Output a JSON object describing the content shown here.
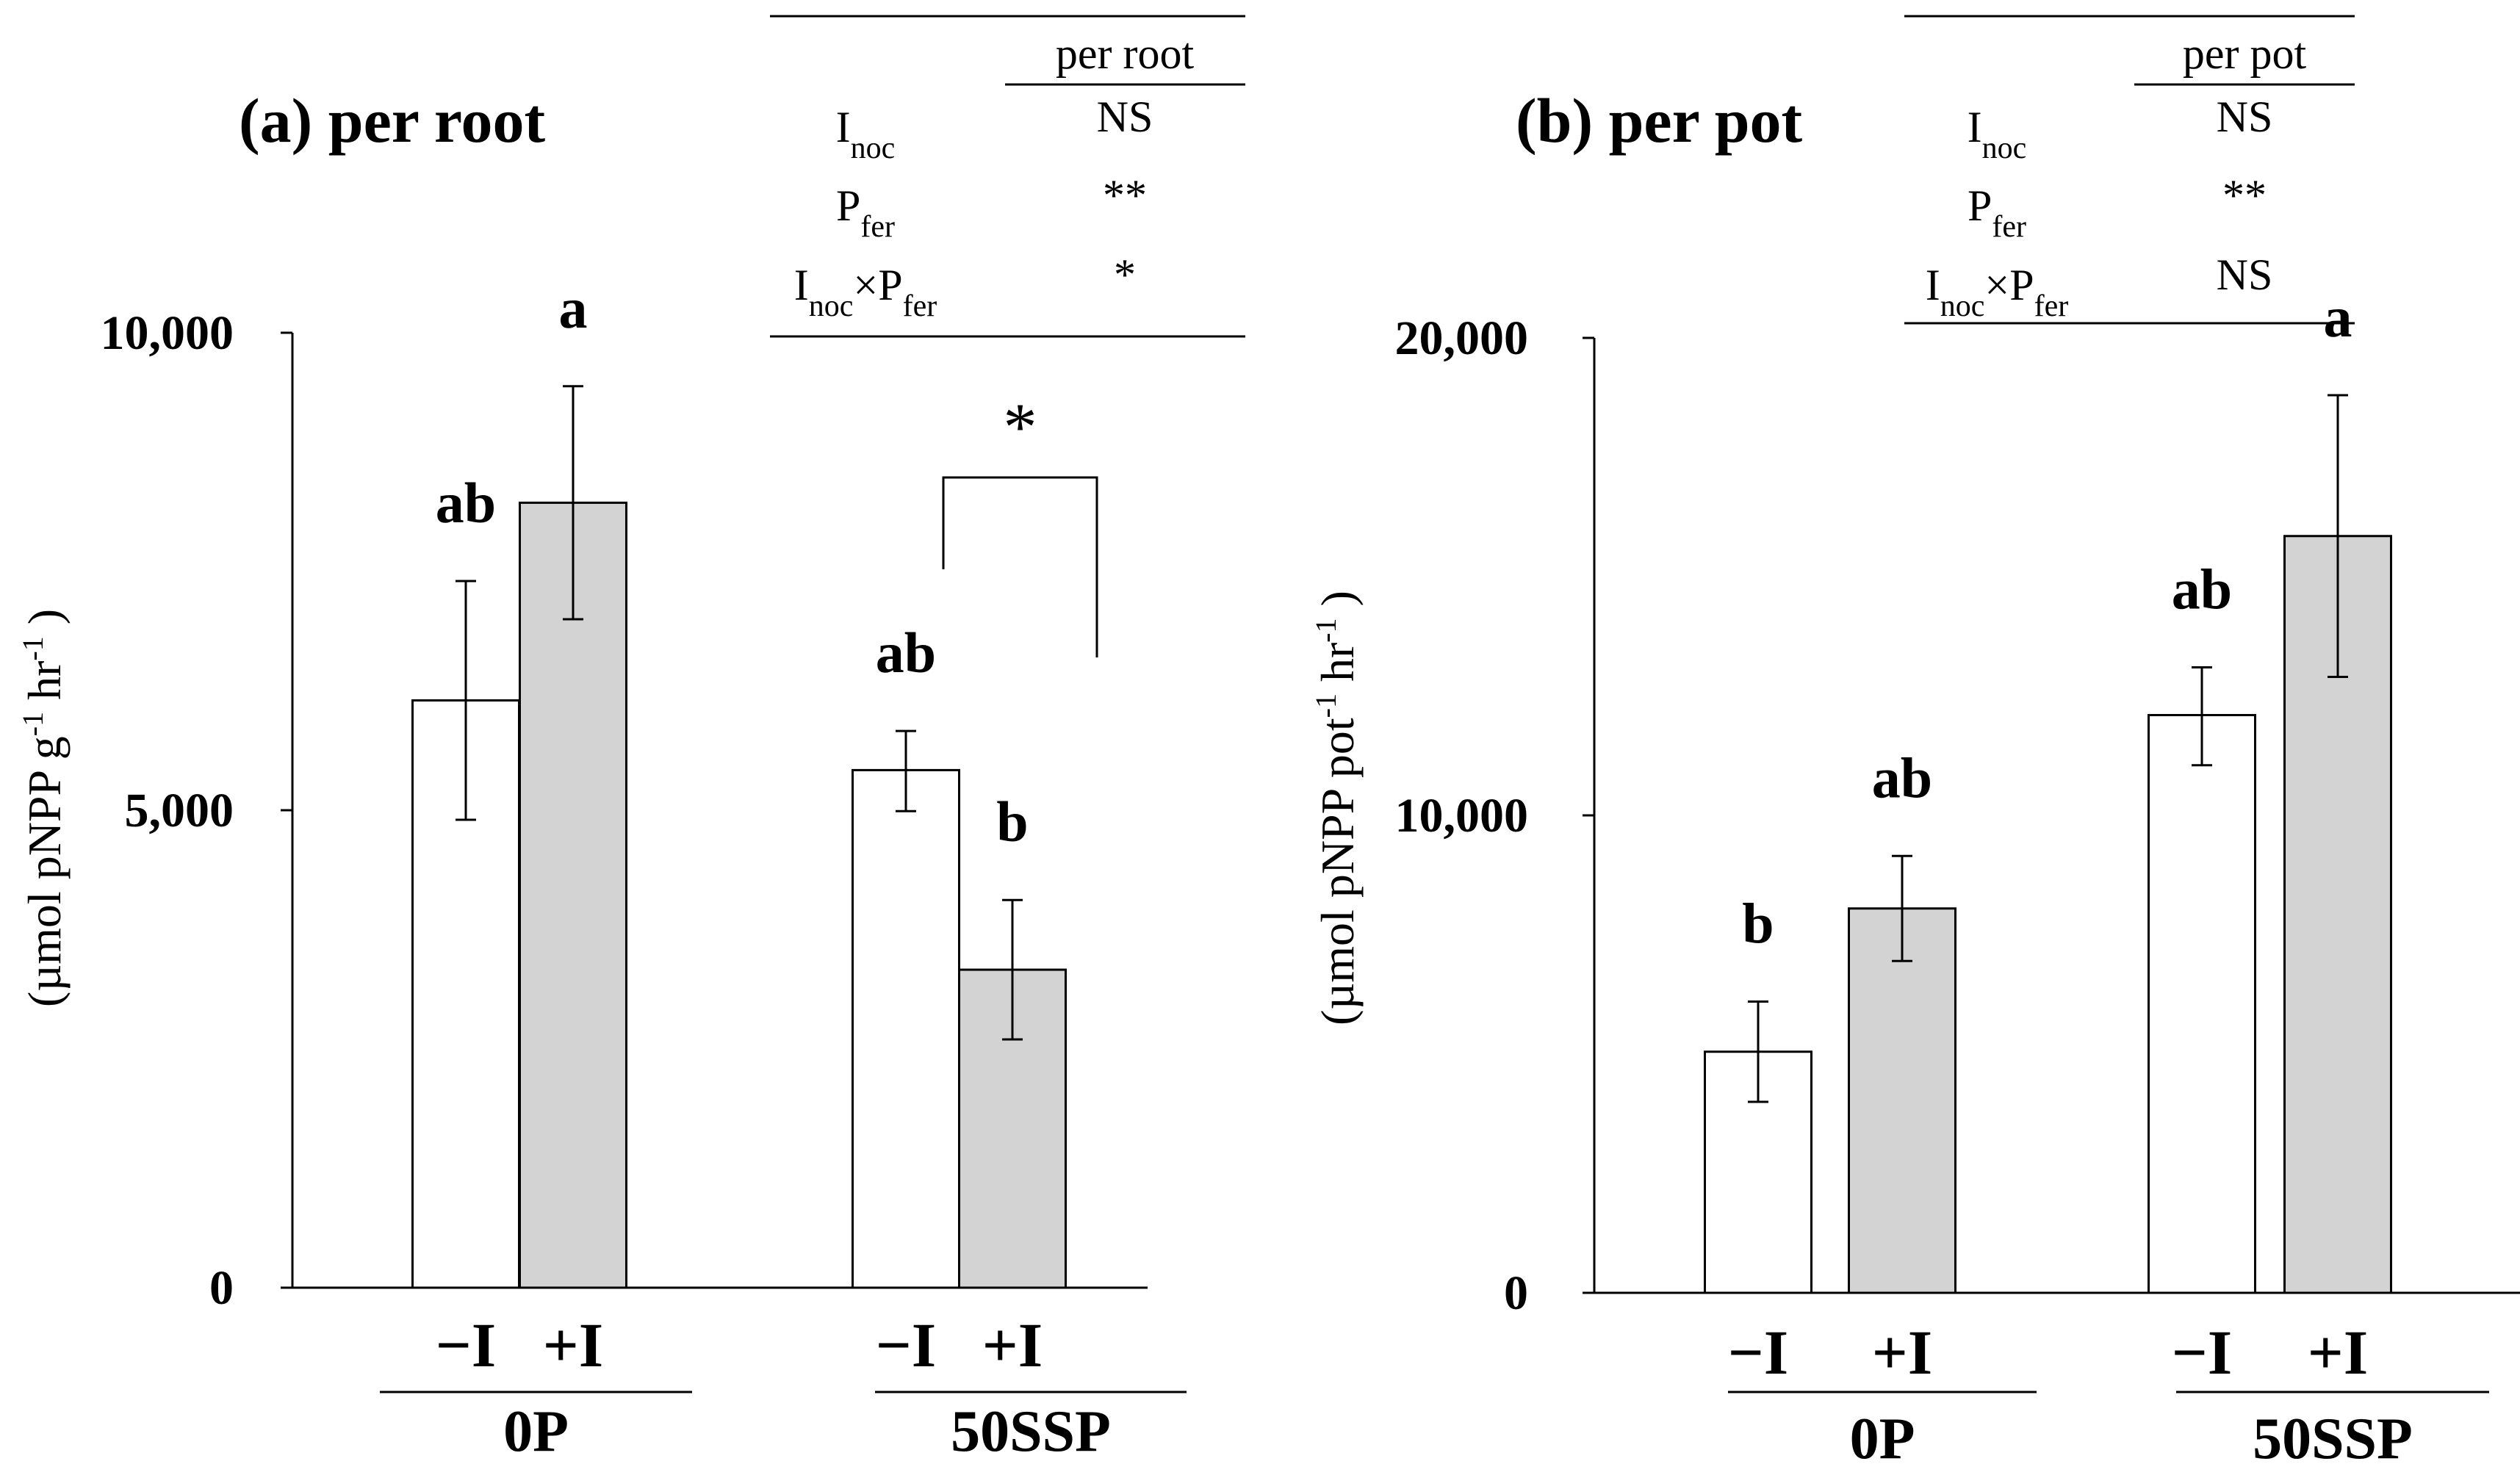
{
  "chart_data": [
    {
      "panel": "a",
      "type": "bar",
      "title": "(a) per root",
      "ylabel_parts": [
        "(µmol pNPP  g",
        "-1",
        " hr",
        "-1",
        " )"
      ],
      "ylim": [
        0,
        10000
      ],
      "yticks": [
        0,
        5000,
        10000
      ],
      "ytick_labels": [
        "0",
        "5,000",
        "10,000"
      ],
      "groups": [
        {
          "label": "0P",
          "bars": [
            {
              "label": "−I",
              "value": 6150,
              "err_low": 4900,
              "err_high": 7400,
              "fill": "white",
              "letter": "ab"
            },
            {
              "label": "+I",
              "value": 8220,
              "err_low": 7000,
              "err_high": 9440,
              "fill": "gray",
              "letter": "a"
            }
          ]
        },
        {
          "label": "50SSP",
          "bars": [
            {
              "label": "−I",
              "value": 5420,
              "err_low": 4990,
              "err_high": 5830,
              "fill": "white",
              "letter": "ab"
            },
            {
              "label": "+I",
              "value": 3330,
              "err_low": 2600,
              "err_high": 4060,
              "fill": "gray",
              "letter": "b"
            }
          ]
        }
      ],
      "significance_bracket": {
        "group": "50SSP",
        "mark": "*"
      },
      "anova": {
        "header": "per root",
        "rows": [
          {
            "name": "I",
            "sub": "noc",
            "value": "NS"
          },
          {
            "name": "P",
            "sub": "fer",
            "value": "**"
          },
          {
            "name": "I",
            "sub": "noc",
            "name2": "×P",
            "sub2": "fer",
            "value": "*"
          }
        ]
      }
    },
    {
      "panel": "b",
      "type": "bar",
      "title": "(b) per pot",
      "ylabel_parts": [
        "(µmol pNPP  pot",
        "-1",
        " hr",
        "-1",
        " )"
      ],
      "ylim": [
        0,
        20000
      ],
      "yticks": [
        0,
        10000,
        20000
      ],
      "ytick_labels": [
        "0",
        "10,000",
        "20,000"
      ],
      "groups": [
        {
          "label": "0P",
          "bars": [
            {
              "label": "−I",
              "value": 5050,
              "err_low": 4000,
              "err_high": 6100,
              "fill": "white",
              "letter": "b"
            },
            {
              "label": "+I",
              "value": 8050,
              "err_low": 6950,
              "err_high": 9150,
              "fill": "gray",
              "letter": "ab"
            }
          ]
        },
        {
          "label": "50SSP",
          "bars": [
            {
              "label": "−I",
              "value": 12100,
              "err_low": 11050,
              "err_high": 13100,
              "fill": "white",
              "letter": "ab"
            },
            {
              "label": "+I",
              "value": 15850,
              "err_low": 12900,
              "err_high": 18800,
              "fill": "gray",
              "letter": "a"
            }
          ]
        }
      ],
      "anova": {
        "header": "per pot",
        "rows": [
          {
            "name": "I",
            "sub": "noc",
            "value": "NS"
          },
          {
            "name": "P",
            "sub": "fer",
            "value": "**"
          },
          {
            "name": "I",
            "sub": "noc",
            "name2": "×P",
            "sub2": "fer",
            "value": "NS"
          }
        ]
      }
    }
  ],
  "colors": {
    "axis": "#000000",
    "bar_white": "#ffffff",
    "bar_gray": "#d3d3d3"
  }
}
